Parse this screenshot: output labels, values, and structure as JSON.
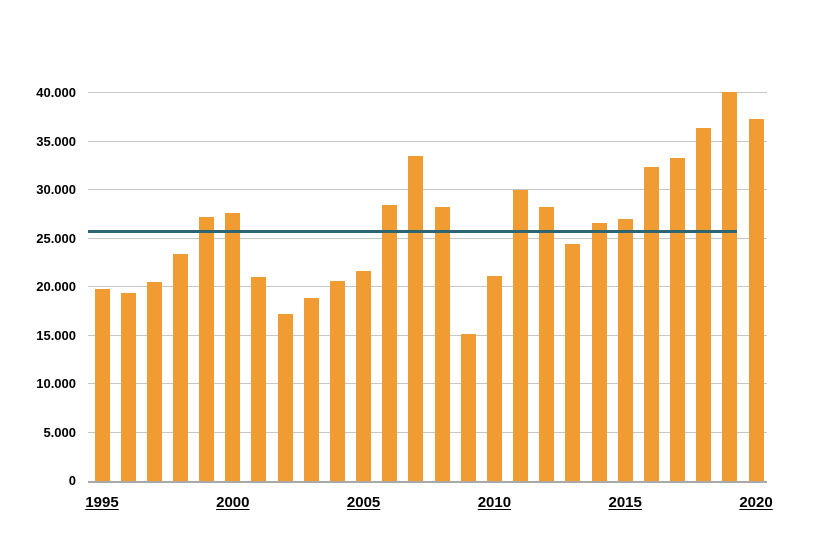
{
  "chart_data": {
    "type": "bar",
    "title": "",
    "xlabel": "",
    "ylabel": "",
    "categories": [
      "1995",
      "1996",
      "1997",
      "1998",
      "1999",
      "2000",
      "2001",
      "2002",
      "2003",
      "2004",
      "2005",
      "2006",
      "2007",
      "2008",
      "2009",
      "2010",
      "2011",
      "2012",
      "2013",
      "2014",
      "2015",
      "2016",
      "2017",
      "2018",
      "2019",
      "2020"
    ],
    "values": [
      19800,
      19400,
      20500,
      23400,
      27200,
      27600,
      21000,
      17200,
      18900,
      20600,
      21700,
      28500,
      33500,
      28300,
      15200,
      21100,
      30000,
      28300,
      24400,
      26600,
      27000,
      32400,
      33300,
      36400,
      40100,
      37300
    ],
    "ylim": [
      0,
      40000
    ],
    "y_tick_step": 5000,
    "y_ticks": [
      {
        "value": 0,
        "label": "0"
      },
      {
        "value": 5000,
        "label": "5.000"
      },
      {
        "value": 10000,
        "label": "10.000"
      },
      {
        "value": 15000,
        "label": "15.000"
      },
      {
        "value": 20000,
        "label": "20.000"
      },
      {
        "value": 25000,
        "label": "25.000"
      },
      {
        "value": 30000,
        "label": "30.000"
      },
      {
        "value": 35000,
        "label": "35.000"
      },
      {
        "value": 40000,
        "label": "40.000"
      }
    ],
    "x_tick_labels": [
      "1995",
      "2000",
      "2005",
      "2010",
      "2015",
      "2020"
    ],
    "grid": "horizontal",
    "legend": "none",
    "bar_color": "#F19C33",
    "reference_line": {
      "value": 25700,
      "color": "#2E6575",
      "start_category": "1995",
      "end_category": "2019"
    }
  }
}
